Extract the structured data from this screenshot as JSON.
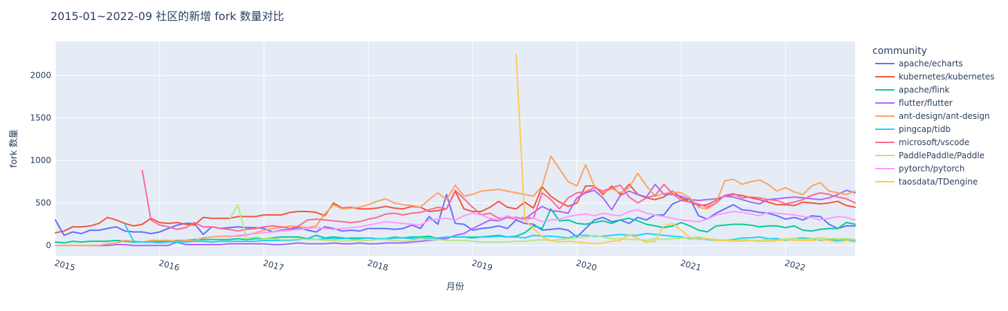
{
  "chart_data": {
    "type": "line",
    "title": "2015-01~2022-09 社区的新增 fork 数量对比",
    "xlabel": "月份",
    "ylabel": "fork 数量",
    "xlim": [
      "2015-01",
      "2022-09"
    ],
    "ylim": [
      -120,
      2400
    ],
    "x_ticks": [
      {
        "label": "2015",
        "value": "2015-01"
      },
      {
        "label": "2016",
        "value": "2016-01"
      },
      {
        "label": "2017",
        "value": "2017-01"
      },
      {
        "label": "2018",
        "value": "2018-01"
      },
      {
        "label": "2019",
        "value": "2019-01"
      },
      {
        "label": "2020",
        "value": "2020-01"
      },
      {
        "label": "2021",
        "value": "2021-01"
      },
      {
        "label": "2022",
        "value": "2022-01"
      }
    ],
    "y_ticks": [
      0,
      500,
      1000,
      1500,
      2000
    ],
    "legend_title": "community",
    "legend_position": "right",
    "series": [
      {
        "name": "apache/echarts",
        "color": "#636efa",
        "start": "2015-01",
        "values": [
          300,
          120,
          160,
          140,
          180,
          180,
          200,
          220,
          170,
          160,
          160,
          140,
          160,
          200,
          240,
          260,
          260,
          130,
          220,
          200,
          210,
          220,
          210,
          210,
          200,
          160,
          180,
          190,
          210,
          180,
          160,
          220,
          200,
          170,
          180,
          170,
          200,
          200,
          200,
          190,
          200,
          240,
          200,
          340,
          250,
          600,
          260,
          250,
          180,
          200,
          210,
          230,
          200,
          300,
          260,
          250,
          180,
          190,
          200,
          180,
          100,
          200,
          300,
          330,
          280,
          300,
          260,
          330,
          300,
          360,
          360,
          490,
          530,
          550,
          350,
          310,
          380,
          430,
          480,
          420,
          410,
          390,
          380,
          350,
          310,
          330,
          300,
          350,
          340,
          250,
          200,
          230,
          230,
          220,
          200,
          200,
          220,
          230,
          190,
          60,
          180,
          190,
          180,
          140,
          210,
          190,
          170,
          140,
          120,
          100,
          100,
          40
        ]
      },
      {
        "name": "kubernetes/kubernetes",
        "color": "#ef553b",
        "start": "2015-01",
        "values": [
          150,
          170,
          220,
          220,
          230,
          260,
          330,
          300,
          260,
          230,
          250,
          320,
          270,
          260,
          270,
          250,
          240,
          330,
          320,
          320,
          320,
          340,
          340,
          340,
          360,
          360,
          360,
          390,
          400,
          400,
          390,
          350,
          500,
          440,
          450,
          430,
          430,
          440,
          460,
          440,
          430,
          460,
          450,
          400,
          410,
          430,
          640,
          430,
          400,
          400,
          450,
          520,
          450,
          430,
          510,
          440,
          690,
          580,
          510,
          460,
          500,
          700,
          700,
          600,
          700,
          600,
          720,
          600,
          560,
          540,
          570,
          640,
          560,
          510,
          470,
          480,
          530,
          580,
          600,
          590,
          560,
          540,
          510,
          480,
          480,
          470,
          510,
          500,
          490,
          500,
          520,
          470,
          450,
          460,
          500,
          440,
          460,
          440,
          500,
          220,
          420,
          450,
          470,
          410,
          540,
          400,
          390,
          370,
          390,
          410,
          460,
          110
        ]
      },
      {
        "name": "apache/flink",
        "color": "#00cc96",
        "start": "2015-01",
        "values": [
          40,
          30,
          50,
          40,
          50,
          50,
          50,
          60,
          50,
          40,
          40,
          40,
          50,
          50,
          60,
          60,
          70,
          70,
          70,
          70,
          70,
          80,
          70,
          80,
          80,
          90,
          100,
          100,
          100,
          80,
          120,
          90,
          100,
          90,
          80,
          80,
          90,
          80,
          80,
          90,
          90,
          100,
          100,
          110,
          80,
          100,
          100,
          100,
          90,
          100,
          110,
          120,
          100,
          110,
          150,
          230,
          200,
          430,
          290,
          300,
          260,
          250,
          270,
          290,
          260,
          300,
          320,
          290,
          250,
          230,
          210,
          230,
          270,
          230,
          180,
          160,
          230,
          240,
          250,
          250,
          240,
          220,
          230,
          230,
          210,
          230,
          180,
          170,
          190,
          200,
          200,
          270,
          250,
          230,
          170,
          180,
          170,
          200,
          190,
          50,
          180,
          200,
          170,
          150,
          210,
          170,
          160,
          160,
          110,
          170,
          190,
          80
        ]
      },
      {
        "name": "flutter/flutter",
        "color": "#ab63fa",
        "start": "2015-05",
        "values": [
          0,
          0,
          0,
          10,
          10,
          0,
          0,
          0,
          0,
          0,
          40,
          10,
          10,
          10,
          10,
          10,
          20,
          20,
          20,
          20,
          20,
          10,
          10,
          20,
          30,
          20,
          20,
          20,
          30,
          20,
          20,
          30,
          20,
          20,
          30,
          30,
          30,
          40,
          50,
          60,
          70,
          80,
          120,
          140,
          200,
          250,
          300,
          290,
          330,
          330,
          310,
          390,
          460,
          410,
          400,
          380,
          560,
          620,
          650,
          560,
          420,
          590,
          640,
          600,
          570,
          720,
          600,
          600,
          580,
          540,
          530,
          540,
          550,
          580,
          570,
          540,
          510,
          490,
          540,
          550,
          560,
          570,
          560,
          550,
          540,
          560,
          600,
          650,
          620,
          600,
          580,
          570,
          590,
          480,
          720,
          480,
          470,
          500,
          560,
          560,
          530,
          560,
          180,
          600,
          640,
          650,
          660,
          700,
          740,
          720,
          700,
          500,
          460,
          510,
          130
        ]
      },
      {
        "name": "ant-design/ant-design",
        "color": "#ffa15a",
        "start": "2015-01",
        "values": [
          0,
          0,
          0,
          0,
          0,
          0,
          20,
          30,
          60,
          50,
          40,
          60,
          60,
          60,
          50,
          60,
          60,
          90,
          100,
          110,
          110,
          110,
          120,
          150,
          180,
          200,
          210,
          230,
          220,
          210,
          230,
          370,
          480,
          430,
          440,
          450,
          480,
          520,
          550,
          500,
          480,
          470,
          450,
          540,
          620,
          540,
          710,
          580,
          600,
          640,
          650,
          660,
          640,
          620,
          600,
          580,
          700,
          1050,
          900,
          750,
          700,
          950,
          700,
          620,
          670,
          620,
          680,
          850,
          700,
          580,
          610,
          630,
          620,
          560,
          450,
          430,
          500,
          760,
          780,
          720,
          750,
          770,
          720,
          640,
          680,
          630,
          600,
          700,
          740,
          640,
          620,
          600,
          640,
          660,
          740,
          750,
          640,
          720,
          620,
          700,
          420,
          680,
          680,
          570,
          520,
          700,
          680,
          610,
          580,
          610,
          620,
          20
        ]
      },
      {
        "name": "pingcap/tidb",
        "color": "#19d3f3",
        "start": "2015-09",
        "values": [
          250,
          50,
          40,
          40,
          30,
          40,
          40,
          40,
          50,
          50,
          40,
          50,
          50,
          50,
          50,
          50,
          60,
          60,
          60,
          60,
          70,
          80,
          70,
          80,
          80,
          80,
          90,
          90,
          90,
          80,
          80,
          100,
          90,
          80,
          80,
          90,
          90,
          100,
          100,
          100,
          100,
          100,
          100,
          110,
          100,
          100,
          90,
          120,
          110,
          110,
          100,
          90,
          120,
          120,
          110,
          110,
          120,
          130,
          120,
          120,
          140,
          130,
          120,
          110,
          100,
          80,
          80,
          70,
          60,
          60,
          70,
          90,
          90,
          100,
          80,
          80,
          60,
          80,
          90,
          80,
          60,
          70,
          60,
          70,
          60,
          60,
          80,
          90,
          70,
          80,
          80,
          70,
          70,
          80,
          60,
          60,
          90,
          80,
          80,
          30,
          80,
          90,
          70,
          70,
          90,
          70,
          70,
          70,
          50,
          50,
          60,
          40
        ]
      },
      {
        "name": "microsoft/vscode",
        "color": "#ff6692",
        "start": "2015-11",
        "values": [
          880,
          300,
          240,
          220,
          190,
          210,
          270,
          220,
          220,
          200,
          190,
          170,
          190,
          200,
          220,
          230,
          220,
          200,
          230,
          300,
          310,
          300,
          290,
          280,
          270,
          280,
          310,
          330,
          370,
          380,
          360,
          380,
          390,
          420,
          450,
          430,
          650,
          550,
          450,
          360,
          380,
          320,
          330,
          310,
          330,
          320,
          620,
          540,
          430,
          560,
          620,
          630,
          680,
          640,
          680,
          710,
          570,
          500,
          560,
          590,
          720,
          610,
          530,
          510,
          490,
          450,
          500,
          590,
          610,
          560,
          570,
          560,
          540,
          530,
          490,
          510,
          540,
          590,
          620,
          600,
          570,
          550,
          500,
          460,
          500,
          490,
          460,
          450,
          460,
          470,
          520,
          460,
          470,
          440,
          390,
          380,
          480,
          200,
          430,
          450,
          490,
          470,
          440,
          390,
          380,
          380,
          350,
          380,
          500,
          100
        ]
      },
      {
        "name": "PaddlePaddle/Paddle",
        "color": "#b6e880",
        "start": "2016-09",
        "values": [
          300,
          480,
          80,
          100,
          80,
          80,
          70,
          70,
          80,
          70,
          70,
          60,
          60,
          50,
          60,
          60,
          60,
          70,
          70,
          60,
          50,
          60,
          80,
          70,
          70,
          60,
          60,
          60,
          50,
          40,
          40,
          40,
          40,
          50,
          50,
          60,
          70,
          60,
          70,
          80,
          90,
          100,
          120,
          100,
          80,
          80,
          70,
          70,
          60,
          80,
          70,
          80,
          90,
          90,
          100,
          80,
          70,
          60,
          60,
          50,
          60,
          60,
          70,
          60,
          80,
          80,
          70,
          80,
          90,
          80,
          80,
          80,
          70,
          100,
          70,
          90,
          90,
          70,
          80,
          70,
          60,
          50,
          60,
          70,
          60,
          60,
          50,
          30,
          60,
          50,
          70,
          60,
          80,
          70,
          70,
          60,
          90,
          70,
          80,
          30
        ]
      },
      {
        "name": "pytorch/pytorch",
        "color": "#ff97ff",
        "start": "2016-09",
        "values": [
          100,
          120,
          130,
          140,
          150,
          160,
          170,
          180,
          190,
          200,
          210,
          200,
          190,
          200,
          210,
          220,
          240,
          260,
          280,
          270,
          260,
          250,
          240,
          300,
          310,
          320,
          300,
          350,
          380,
          360,
          320,
          300,
          350,
          320,
          300,
          320,
          280,
          300,
          310,
          340,
          360,
          370,
          350,
          380,
          360,
          350,
          400,
          420,
          380,
          360,
          340,
          320,
          300,
          290,
          280,
          310,
          360,
          380,
          400,
          390,
          370,
          350,
          390,
          380,
          370,
          360,
          340,
          330,
          300,
          320,
          340,
          330,
          300,
          330,
          320,
          360,
          330,
          330,
          350,
          290,
          240,
          320,
          310,
          300,
          290,
          280,
          300,
          320,
          270,
          290,
          280,
          290,
          310,
          280,
          300,
          30
        ]
      },
      {
        "name": "taosdata/TDengine",
        "color": "#fecb52",
        "start": "2019-06",
        "values": [
          2250,
          300,
          200,
          100,
          60,
          40,
          50,
          40,
          30,
          20,
          30,
          50,
          60,
          130,
          80,
          40,
          50,
          230,
          260,
          180,
          90,
          70,
          80,
          60,
          60,
          50,
          70,
          60,
          50,
          50,
          60,
          70,
          60,
          60,
          60,
          70,
          60,
          40,
          60,
          40,
          50,
          50,
          60,
          50,
          60,
          40,
          30,
          50,
          40,
          40,
          30,
          30
        ]
      }
    ]
  }
}
